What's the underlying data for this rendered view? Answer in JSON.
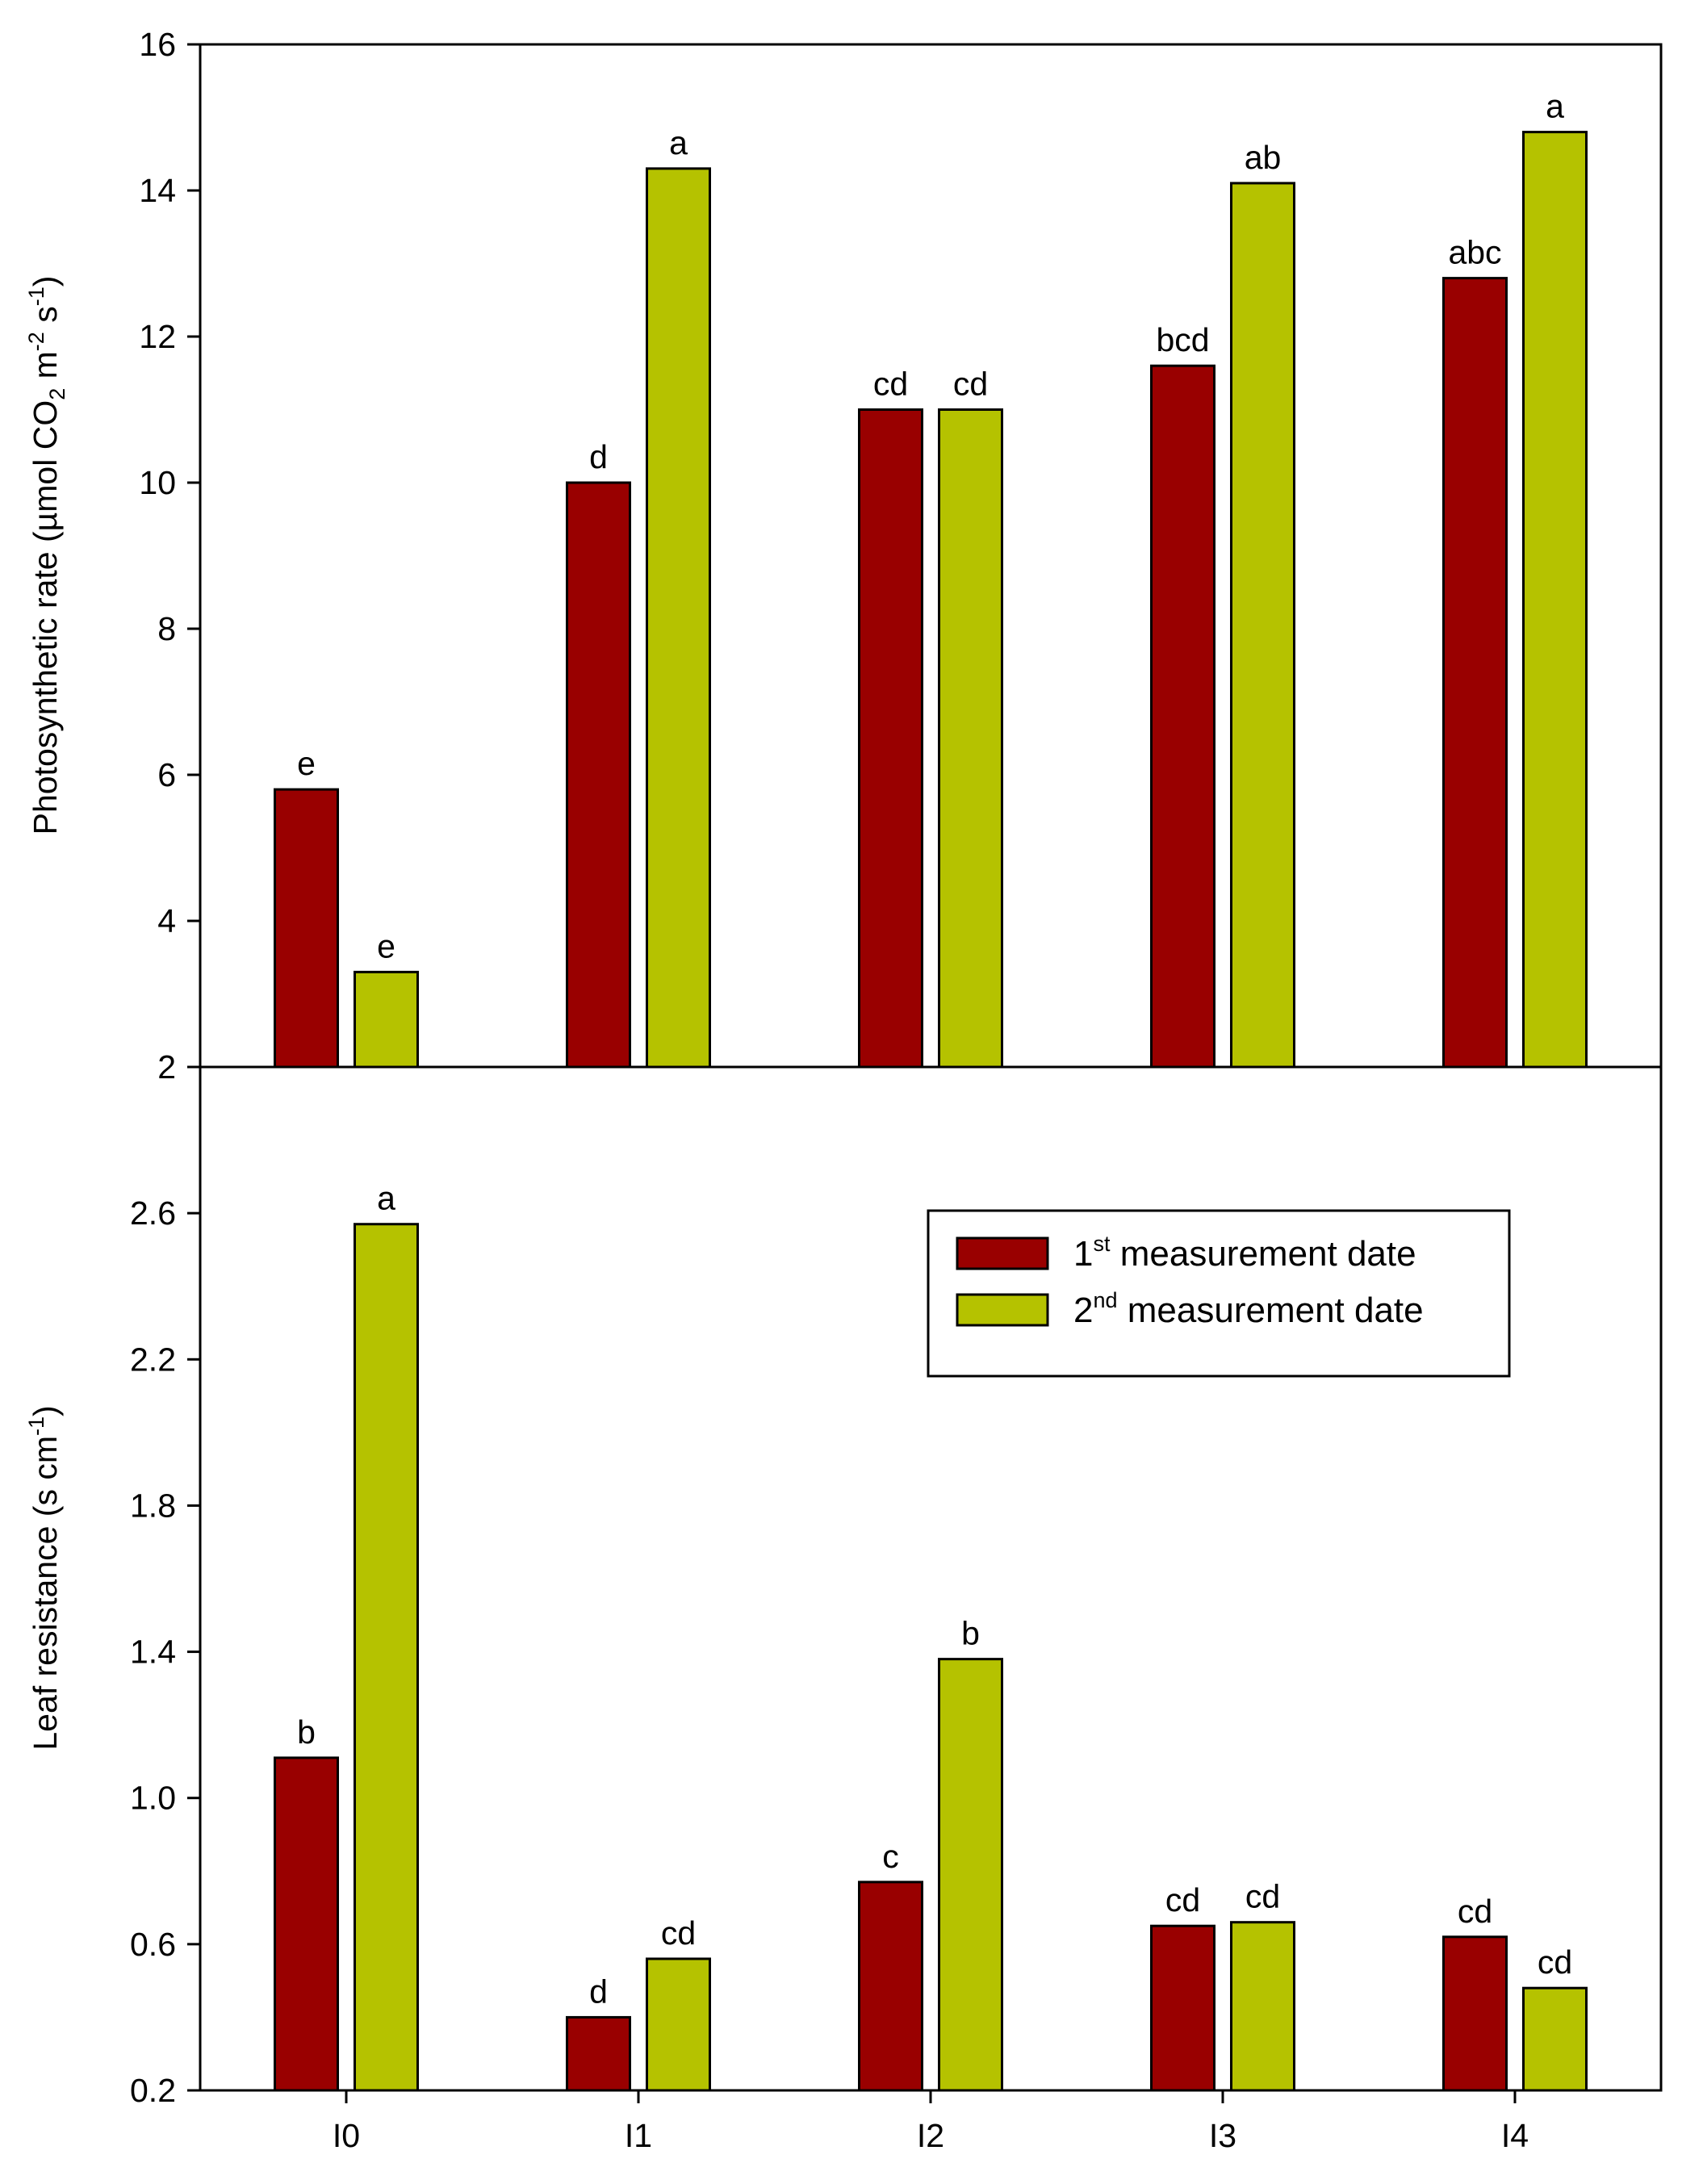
{
  "chart_data": {
    "type": "bar",
    "categories": [
      "I0",
      "I1",
      "I2",
      "I3",
      "I4"
    ],
    "legend": {
      "placement": "center-right of lower panel",
      "entries": [
        {
          "number": "1",
          "suffix": "st",
          "text": " measurement date",
          "color": "#990000"
        },
        {
          "number": "2",
          "suffix": "nd",
          "text": " measurement date",
          "color": "#b5c200"
        }
      ]
    },
    "panels": [
      {
        "id": "top",
        "ylim": [
          2,
          16
        ],
        "yticks": [
          2,
          4,
          6,
          8,
          10,
          12,
          14,
          16
        ],
        "ylabel": {
          "prefix": "Photosynthetic rate (µmol CO",
          "sub": "2",
          "mid1": " m",
          "sup1": "-2",
          "mid2": " s",
          "sup2": "-1",
          "suffix": ")"
        },
        "series": [
          {
            "values": [
              5.8,
              10.0,
              11.0,
              11.6,
              12.8
            ],
            "labels": [
              "e",
              "d",
              "cd",
              "bcd",
              "abc"
            ]
          },
          {
            "values": [
              3.3,
              14.3,
              11.0,
              14.1,
              14.8
            ],
            "labels": [
              "e",
              "a",
              "cd",
              "ab",
              "a"
            ]
          }
        ],
        "grid": false
      },
      {
        "id": "bottom",
        "ylim": [
          0.2,
          3.0
        ],
        "yticks": [
          "0.2",
          "0.6",
          "1.0",
          "1.4",
          "1.8",
          "2.2",
          "2.6"
        ],
        "ylabel": {
          "prefix": "Leaf resistance (s cm",
          "sup1": "-1",
          "suffix": ")"
        },
        "series": [
          {
            "values": [
              1.11,
              0.4,
              0.77,
              0.65,
              0.62
            ],
            "labels": [
              "b",
              "d",
              "c",
              "cd",
              "cd"
            ]
          },
          {
            "values": [
              2.57,
              0.56,
              1.38,
              0.66,
              0.48
            ],
            "labels": [
              "a",
              "cd",
              "b",
              "cd",
              "cd"
            ]
          }
        ],
        "grid": false
      }
    ]
  }
}
